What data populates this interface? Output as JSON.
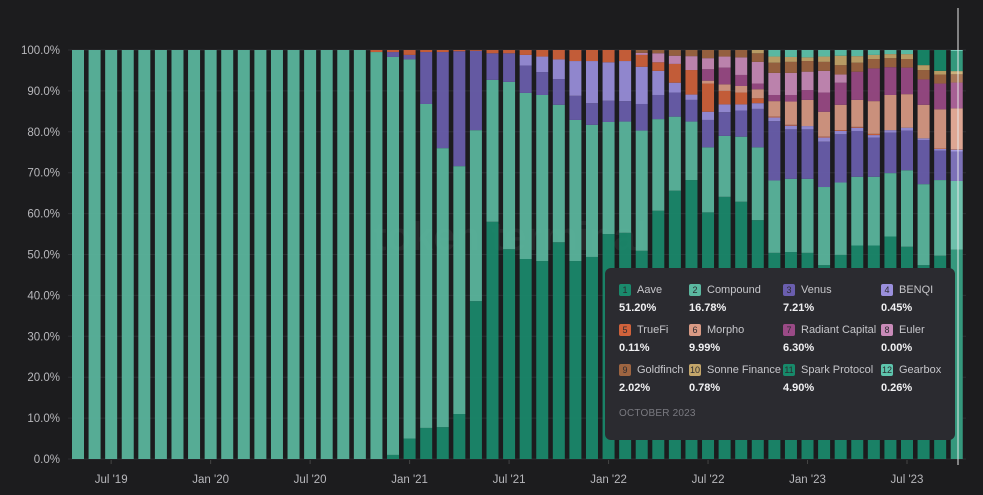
{
  "chart_data": {
    "type": "bar",
    "stacked": true,
    "normalized": true,
    "ylim": [
      0,
      100
    ],
    "y_ticks": [
      "0.0%",
      "10.0%",
      "20.0%",
      "30.0%",
      "40.0%",
      "50.0%",
      "60.0%",
      "70.0%",
      "80.0%",
      "90.0%",
      "100.0%"
    ],
    "x_ticks": [
      "Jul '19",
      "Jan '20",
      "Jul '20",
      "Jan '21",
      "Jul '21",
      "Jan '22",
      "Jul '22",
      "Jan '23",
      "Jul '23"
    ],
    "grid": true,
    "categories": [
      "2019-05",
      "2019-06",
      "2019-07",
      "2019-08",
      "2019-09",
      "2019-10",
      "2019-11",
      "2019-12",
      "2020-01",
      "2020-02",
      "2020-03",
      "2020-04",
      "2020-05",
      "2020-06",
      "2020-07",
      "2020-08",
      "2020-09",
      "2020-10",
      "2020-11",
      "2020-12",
      "2021-01",
      "2021-02",
      "2021-03",
      "2021-04",
      "2021-05",
      "2021-06",
      "2021-07",
      "2021-08",
      "2021-09",
      "2021-10",
      "2021-11",
      "2021-12",
      "2022-01",
      "2022-02",
      "2022-03",
      "2022-04",
      "2022-05",
      "2022-06",
      "2022-07",
      "2022-08",
      "2022-09",
      "2022-10",
      "2022-11",
      "2022-12",
      "2023-01",
      "2023-02",
      "2023-03",
      "2023-04",
      "2023-05",
      "2023-06",
      "2023-07",
      "2023-08",
      "2023-09",
      "2023-10"
    ],
    "series": [
      {
        "name": "Aave",
        "color": "#1a8a6c",
        "values": [
          0,
          0,
          0,
          0,
          0,
          0,
          0,
          0,
          0,
          0,
          0,
          0,
          0,
          0,
          0,
          0,
          0,
          0,
          0,
          1,
          5,
          7.6,
          7.8,
          11,
          38.6,
          58,
          51.3,
          48.9,
          48.4,
          53,
          48.4,
          49.4,
          55,
          55.3,
          50.9,
          60.7,
          65.6,
          68.2,
          60.3,
          64.1,
          62.9,
          58.4,
          50.4,
          50.6,
          50.4,
          47.4,
          49.9,
          52.2,
          52.2,
          54.4,
          51.9,
          47.4,
          49.7,
          51.2
        ]
      },
      {
        "name": "Compound",
        "color": "#5bb8a0",
        "values": [
          100,
          100,
          100,
          100,
          100,
          100,
          100,
          100,
          100,
          100,
          100,
          100,
          100,
          100,
          100,
          100,
          100,
          100,
          99.5,
          97.3,
          92.7,
          79.2,
          68.2,
          60.6,
          41.8,
          34.7,
          40.9,
          40.6,
          40.6,
          33.6,
          34.5,
          32.3,
          27.4,
          27.2,
          29.4,
          22.4,
          18.1,
          14.3,
          15.9,
          14.9,
          15.9,
          17.8,
          17.7,
          17.9,
          18.1,
          19.1,
          17.7,
          16.8,
          16.8,
          15.5,
          18.7,
          19.8,
          18.5,
          16.78
        ]
      },
      {
        "name": "Venus",
        "color": "#6a5eae",
        "values": [
          0,
          0,
          0,
          0,
          0,
          0,
          0,
          0,
          0,
          0,
          0,
          0,
          0,
          0,
          0,
          0,
          0,
          0,
          0,
          1.2,
          1.1,
          12.7,
          23.5,
          28.1,
          19.4,
          6.5,
          7,
          6.7,
          5.6,
          6.3,
          5.9,
          5.3,
          5.2,
          5,
          6.5,
          5.9,
          5.9,
          5.3,
          6.7,
          5.8,
          6.4,
          9.4,
          14.5,
          12.1,
          12.1,
          11.1,
          11.8,
          11.2,
          9.6,
          9.9,
          9.7,
          10.8,
          7.2,
          7.21
        ]
      },
      {
        "name": "BENQI",
        "color": "#9a8fdc",
        "values": [
          0,
          0,
          0,
          0,
          0,
          0,
          0,
          0,
          0,
          0,
          0,
          0,
          0,
          0,
          0,
          0,
          0,
          0,
          0,
          0,
          0,
          0,
          0,
          0,
          0,
          0,
          0,
          2.6,
          3.8,
          4.8,
          8.5,
          10.3,
          9.4,
          9.8,
          9.1,
          5.9,
          2.4,
          1.3,
          2,
          1.9,
          1.5,
          1.4,
          0.9,
          0.9,
          0.8,
          1,
          0.8,
          0.8,
          0.6,
          0.6,
          0.7,
          0.4,
          0.4,
          0.45
        ]
      },
      {
        "name": "TrueFi",
        "color": "#d0623b",
        "values": [
          0,
          0,
          0,
          0,
          0,
          0,
          0,
          0,
          0,
          0,
          0,
          0,
          0,
          0,
          0,
          0,
          0,
          0,
          0.5,
          0.5,
          1.2,
          0.5,
          0.5,
          0.3,
          0.2,
          0.8,
          0.8,
          1.2,
          1.6,
          2.3,
          2.7,
          2.7,
          3,
          2.7,
          2.9,
          2.1,
          4.6,
          6,
          6.9,
          3.3,
          2.9,
          1.2,
          0.2,
          0.2,
          0,
          0.2,
          0.2,
          0.2,
          0.3,
          0,
          0,
          0,
          0.1,
          0.11
        ]
      },
      {
        "name": "Morpho",
        "color": "#d99a84",
        "values": [
          0,
          0,
          0,
          0,
          0,
          0,
          0,
          0,
          0,
          0,
          0,
          0,
          0,
          0,
          0,
          0,
          0,
          0,
          0,
          0,
          0,
          0,
          0,
          0,
          0,
          0,
          0,
          0,
          0,
          0,
          0,
          0,
          0,
          0,
          0,
          0,
          0,
          0,
          0.7,
          1.6,
          1.6,
          2.2,
          3.8,
          5.7,
          6.4,
          6.1,
          6.2,
          6.6,
          8,
          8.6,
          8.2,
          8.2,
          9.6,
          9.99
        ]
      },
      {
        "name": "Radiant Capital",
        "color": "#9a4a86",
        "values": [
          0,
          0,
          0,
          0,
          0,
          0,
          0,
          0,
          0,
          0,
          0,
          0,
          0,
          0,
          0,
          0,
          0,
          0,
          0,
          0,
          0,
          0,
          0,
          0,
          0,
          0,
          0,
          0,
          0,
          0,
          0,
          0,
          0,
          0,
          0,
          0,
          0,
          0,
          2.8,
          4.1,
          2.7,
          1.4,
          1.5,
          1.6,
          2.4,
          4.7,
          5.4,
          6.9,
          8,
          6.8,
          6.5,
          6.2,
          6.3,
          6.3
        ]
      },
      {
        "name": "Euler",
        "color": "#c98bb9",
        "values": [
          0,
          0,
          0,
          0,
          0,
          0,
          0,
          0,
          0,
          0,
          0,
          0,
          0,
          0,
          0,
          0,
          0,
          0,
          0,
          0,
          0,
          0,
          0,
          0,
          0,
          0,
          0,
          0,
          0,
          0,
          0,
          0,
          0,
          0,
          0.5,
          2.2,
          2,
          3.4,
          2.7,
          2.7,
          4.3,
          5.3,
          5.4,
          5.4,
          4.5,
          5.3,
          2,
          0,
          0,
          0,
          0,
          0,
          0,
          0
        ]
      },
      {
        "name": "Goldfinch",
        "color": "#9e6541",
        "values": [
          0,
          0,
          0,
          0,
          0,
          0,
          0,
          0,
          0,
          0,
          0,
          0,
          0,
          0,
          0,
          0,
          0,
          0,
          0,
          0,
          0,
          0,
          0,
          0,
          0,
          0,
          0,
          0,
          0,
          0,
          0,
          0,
          0,
          0,
          0.7,
          0.8,
          1.4,
          1.5,
          2,
          1.6,
          1.8,
          2.1,
          2.5,
          2.7,
          2.6,
          2.2,
          2.3,
          2.2,
          2.3,
          2.2,
          2.1,
          2.3,
          2.2,
          2.02
        ]
      },
      {
        "name": "Sonne Finance",
        "color": "#c4a66a",
        "values": [
          0,
          0,
          0,
          0,
          0,
          0,
          0,
          0,
          0,
          0,
          0,
          0,
          0,
          0,
          0,
          0,
          0,
          0,
          0,
          0,
          0,
          0,
          0,
          0,
          0,
          0,
          0,
          0,
          0,
          0,
          0,
          0,
          0,
          0,
          0,
          0,
          0,
          0,
          0,
          0,
          0,
          0.8,
          1.5,
          1.2,
          0.9,
          1.3,
          2.3,
          1.6,
          1,
          1,
          1.2,
          1.2,
          0.9,
          0.78
        ]
      },
      {
        "name": "Spark Protocol",
        "color": "#178a6a",
        "values": [
          0,
          0,
          0,
          0,
          0,
          0,
          0,
          0,
          0,
          0,
          0,
          0,
          0,
          0,
          0,
          0,
          0,
          0,
          0,
          0,
          0,
          0,
          0,
          0,
          0,
          0,
          0,
          0,
          0,
          0,
          0,
          0,
          0,
          0,
          0,
          0,
          0,
          0,
          0,
          0,
          0,
          0,
          0,
          0,
          0,
          0,
          0,
          0,
          0,
          0,
          0,
          3.7,
          5.1,
          4.9
        ]
      },
      {
        "name": "Gearbox",
        "color": "#5ec5ad",
        "values": [
          0,
          0,
          0,
          0,
          0,
          0,
          0,
          0,
          0,
          0,
          0,
          0,
          0,
          0,
          0,
          0,
          0,
          0,
          0,
          0,
          0,
          0,
          0,
          0,
          0,
          0,
          0,
          0,
          0,
          0,
          0,
          0,
          0,
          0,
          0,
          0,
          0,
          0,
          0,
          0,
          0,
          0,
          1.6,
          1.7,
          1.8,
          1.6,
          1.4,
          1.5,
          1.2,
          1,
          1,
          0,
          0,
          0.26
        ]
      }
    ]
  },
  "tooltip": {
    "date": "OCTOBER 2023",
    "items": [
      {
        "index": "1",
        "name": "Aave",
        "value": "51.20%"
      },
      {
        "index": "2",
        "name": "Compound",
        "value": "16.78%"
      },
      {
        "index": "3",
        "name": "Venus",
        "value": "7.21%"
      },
      {
        "index": "4",
        "name": "BENQI",
        "value": "0.45%"
      },
      {
        "index": "5",
        "name": "TrueFi",
        "value": "0.11%"
      },
      {
        "index": "6",
        "name": "Morpho",
        "value": "9.99%"
      },
      {
        "index": "7",
        "name": "Radiant Capital",
        "value": "6.30%"
      },
      {
        "index": "8",
        "name": "Euler",
        "value": "0.00%"
      },
      {
        "index": "9",
        "name": "Goldfinch",
        "value": "2.02%"
      },
      {
        "index": "10",
        "name": "Sonne Finance",
        "value": "0.78%"
      },
      {
        "index": "11",
        "name": "Spark Protocol",
        "value": "4.90%"
      },
      {
        "index": "12",
        "name": "Gearbox",
        "value": "0.26%"
      }
    ]
  },
  "watermark": "token terminal"
}
